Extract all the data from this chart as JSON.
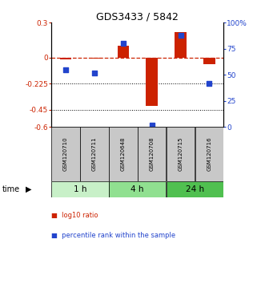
{
  "title": "GDS3433 / 5842",
  "samples": [
    "GSM120710",
    "GSM120711",
    "GSM120648",
    "GSM120708",
    "GSM120715",
    "GSM120716"
  ],
  "log10_ratio": [
    -0.02,
    -0.01,
    0.1,
    -0.42,
    0.22,
    -0.06
  ],
  "percentile_rank": [
    55,
    52,
    80,
    2,
    88,
    42
  ],
  "groups": [
    {
      "label": "1 h",
      "indices": [
        0,
        1
      ],
      "color": "#c8f0c8"
    },
    {
      "label": "4 h",
      "indices": [
        2,
        3
      ],
      "color": "#90e090"
    },
    {
      "label": "24 h",
      "indices": [
        4,
        5
      ],
      "color": "#50c050"
    }
  ],
  "ylim_left": [
    -0.6,
    0.3
  ],
  "ylim_right": [
    0,
    100
  ],
  "yticks_left": [
    0.3,
    0,
    -0.225,
    -0.45,
    -0.6
  ],
  "ytick_labels_left": [
    "0.3",
    "0",
    "-0.225",
    "-0.45",
    "-0.6"
  ],
  "yticks_right": [
    100,
    75,
    50,
    25,
    0
  ],
  "ytick_labels_right": [
    "100%",
    "75",
    "50",
    "25",
    "0"
  ],
  "hlines": [
    0,
    -0.225,
    -0.45
  ],
  "bar_color_red": "#cc2200",
  "bar_color_blue": "#2244cc",
  "bar_width": 0.4,
  "background_color": "#ffffff",
  "sample_box_color": "#c8c8c8",
  "time_label": "time",
  "legend_red": "log10 ratio",
  "legend_blue": "percentile rank within the sample"
}
